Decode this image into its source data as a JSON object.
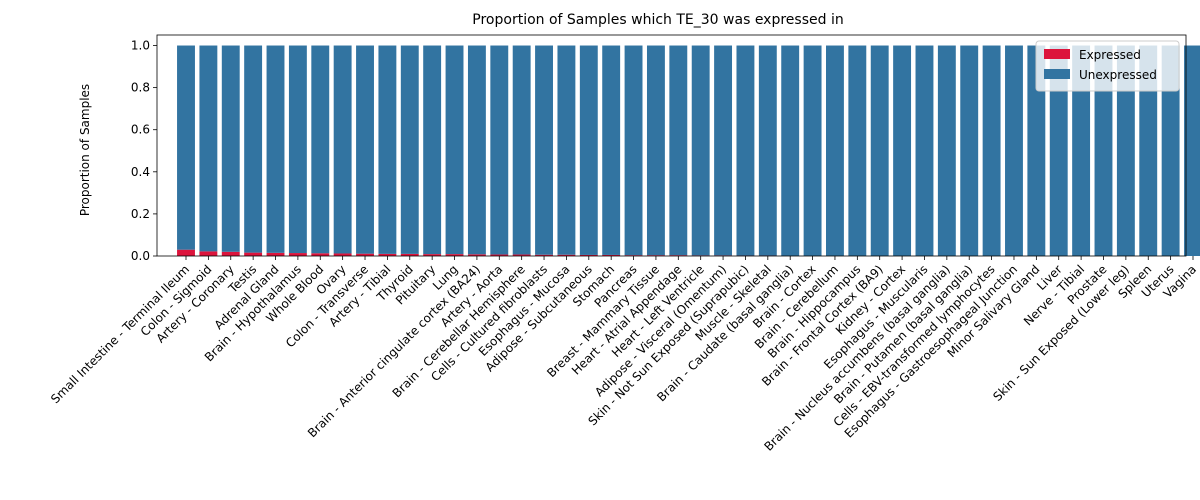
{
  "chart_data": {
    "type": "bar",
    "stacked": true,
    "title": "Proportion of Samples which TE_30 was expressed in",
    "xlabel": "",
    "ylabel": "Proportion of Samples",
    "ylim": [
      0,
      1.05
    ],
    "yticks": [
      "0.0",
      "0.2",
      "0.4",
      "0.6",
      "0.8",
      "1.0"
    ],
    "ytick_values": [
      0,
      0.2,
      0.4,
      0.6,
      0.8,
      1.0
    ],
    "legend_position": "top-right",
    "categories": [
      "Small Intestine - Terminal Ileum",
      "Colon - Sigmoid",
      "Artery - Coronary",
      "Testis",
      "Adrenal Gland",
      "Brain - Hypothalamus",
      "Whole Blood",
      "Ovary",
      "Colon - Transverse",
      "Artery - Tibial",
      "Thyroid",
      "Pituitary",
      "Lung",
      "Brain - Anterior cingulate cortex (BA24)",
      "Artery - Aorta",
      "Brain - Cerebellar Hemisphere",
      "Cells - Cultured fibroblasts",
      "Esophagus - Mucosa",
      "Adipose - Subcutaneous",
      "Stomach",
      "Pancreas",
      "Breast - Mammary Tissue",
      "Heart - Atrial Appendage",
      "Heart - Left Ventricle",
      "Adipose - Visceral (Omentum)",
      "Skin - Not Sun Exposed (Suprapubic)",
      "Muscle - Skeletal",
      "Brain - Caudate (basal ganglia)",
      "Brain - Cortex",
      "Brain - Cerebellum",
      "Brain - Hippocampus",
      "Brain - Frontal Cortex (BA9)",
      "Kidney - Cortex",
      "Esophagus - Muscularis",
      "Brain - Nucleus accumbens (basal ganglia)",
      "Brain - Putamen (basal ganglia)",
      "Cells - EBV-transformed lymphocytes",
      "Esophagus - Gastroesophageal Junction",
      "Minor Salivary Gland",
      "Liver",
      "Nerve - Tibial",
      "Prostate",
      "Skin - Sun Exposed (Lower leg)",
      "Spleen",
      "Uterus",
      "Vagina"
    ],
    "series": [
      {
        "name": "Expressed",
        "color": "#dc143c",
        "values": [
          0.03,
          0.022,
          0.02,
          0.016,
          0.015,
          0.014,
          0.013,
          0.012,
          0.011,
          0.01,
          0.01,
          0.009,
          0.009,
          0.008,
          0.007,
          0.007,
          0.006,
          0.006,
          0.005,
          0.005,
          0.004,
          0.004,
          0.004,
          0.003,
          0.003,
          0.002,
          0.002,
          0,
          0,
          0,
          0,
          0,
          0,
          0,
          0,
          0,
          0,
          0,
          0,
          0,
          0,
          0,
          0,
          0,
          0,
          0
        ]
      },
      {
        "name": "Unexpressed",
        "color": "#3274a1",
        "values": [
          0.97,
          0.978,
          0.98,
          0.984,
          0.985,
          0.986,
          0.987,
          0.988,
          0.989,
          0.99,
          0.99,
          0.991,
          0.991,
          0.992,
          0.993,
          0.993,
          0.994,
          0.994,
          0.995,
          0.995,
          0.996,
          0.996,
          0.996,
          0.997,
          0.997,
          0.998,
          0.998,
          1,
          1,
          1,
          1,
          1,
          1,
          1,
          1,
          1,
          1,
          1,
          1,
          1,
          1,
          1,
          1,
          1,
          1,
          1
        ]
      }
    ]
  }
}
